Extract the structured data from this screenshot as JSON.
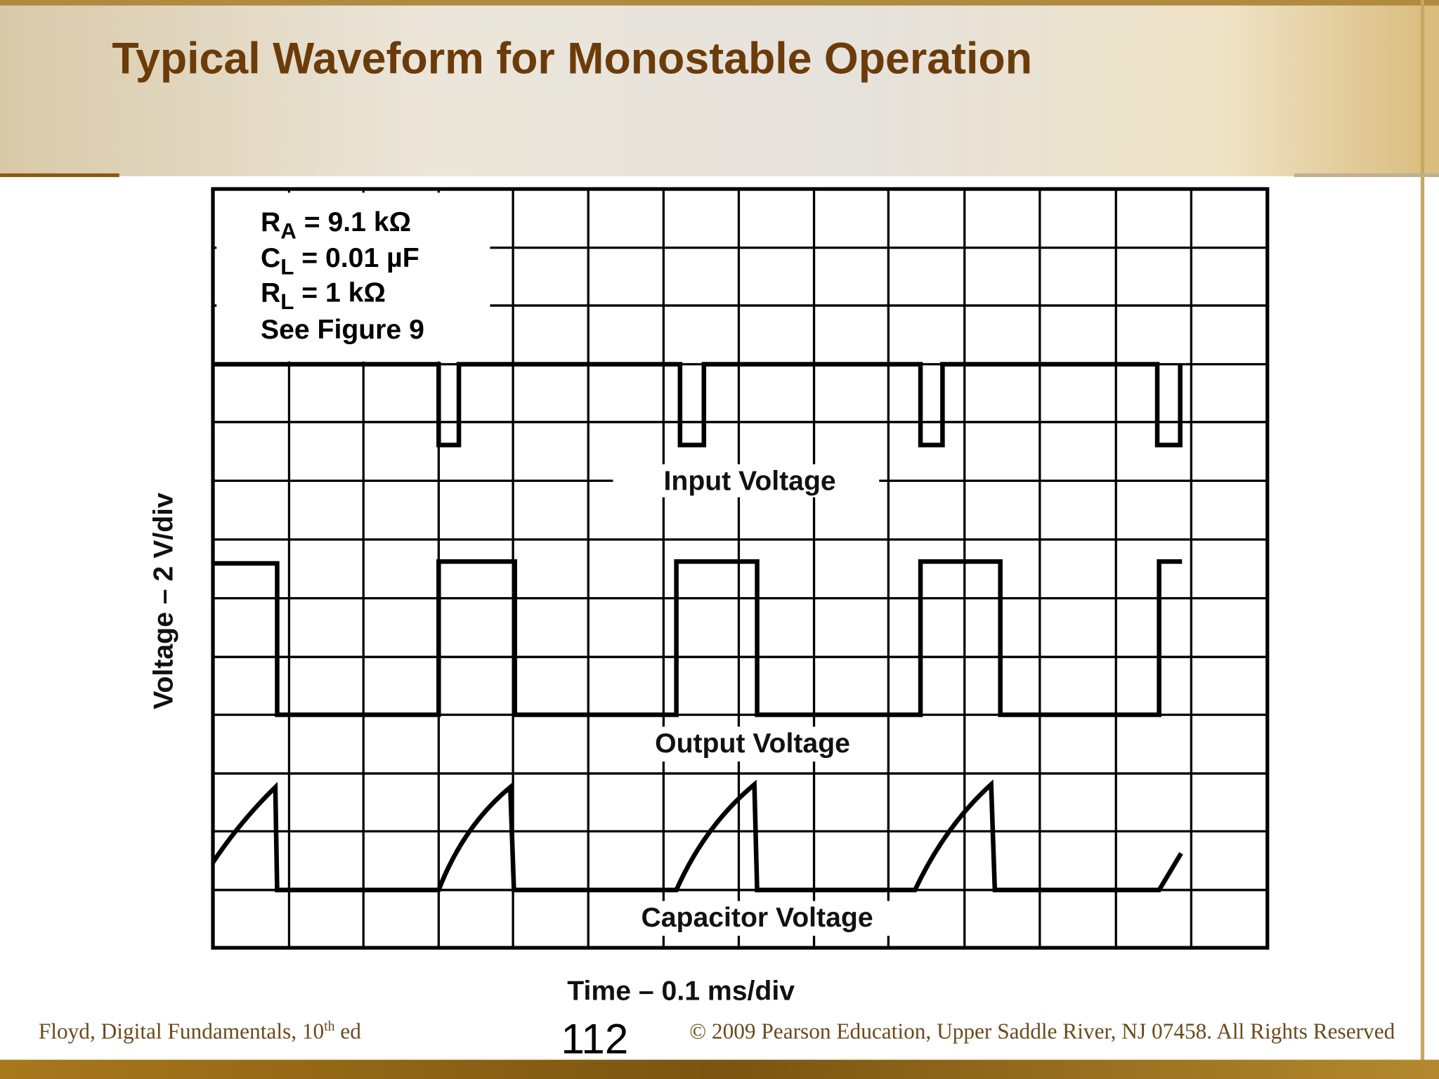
{
  "header": {
    "title": "Typical Waveform for Monostable Operation"
  },
  "figure": {
    "parameters": [
      {
        "symbol": "R",
        "subscript": "A",
        "value": " = 9.1 kΩ"
      },
      {
        "symbol": "C",
        "subscript": "L",
        "value": " = 0.01 µF"
      },
      {
        "symbol": "R",
        "subscript": "L",
        "value": " = 1 kΩ"
      }
    ],
    "reference": "See Figure 9",
    "traces": [
      "Input Voltage",
      "Output Voltage",
      "Capacitor Voltage"
    ],
    "y_axis_label": "Voltage – 2 V/div",
    "x_axis_label": "Time – 0.1 ms/div"
  },
  "footer": {
    "source": "Floyd, Digital Fundamentals, 10",
    "source_superscript": "th",
    "source_suffix": " ed",
    "page_number": "112",
    "copyright": "© 2009 Pearson Education, Upper Saddle River, NJ 07458. All Rights Reserved"
  }
}
